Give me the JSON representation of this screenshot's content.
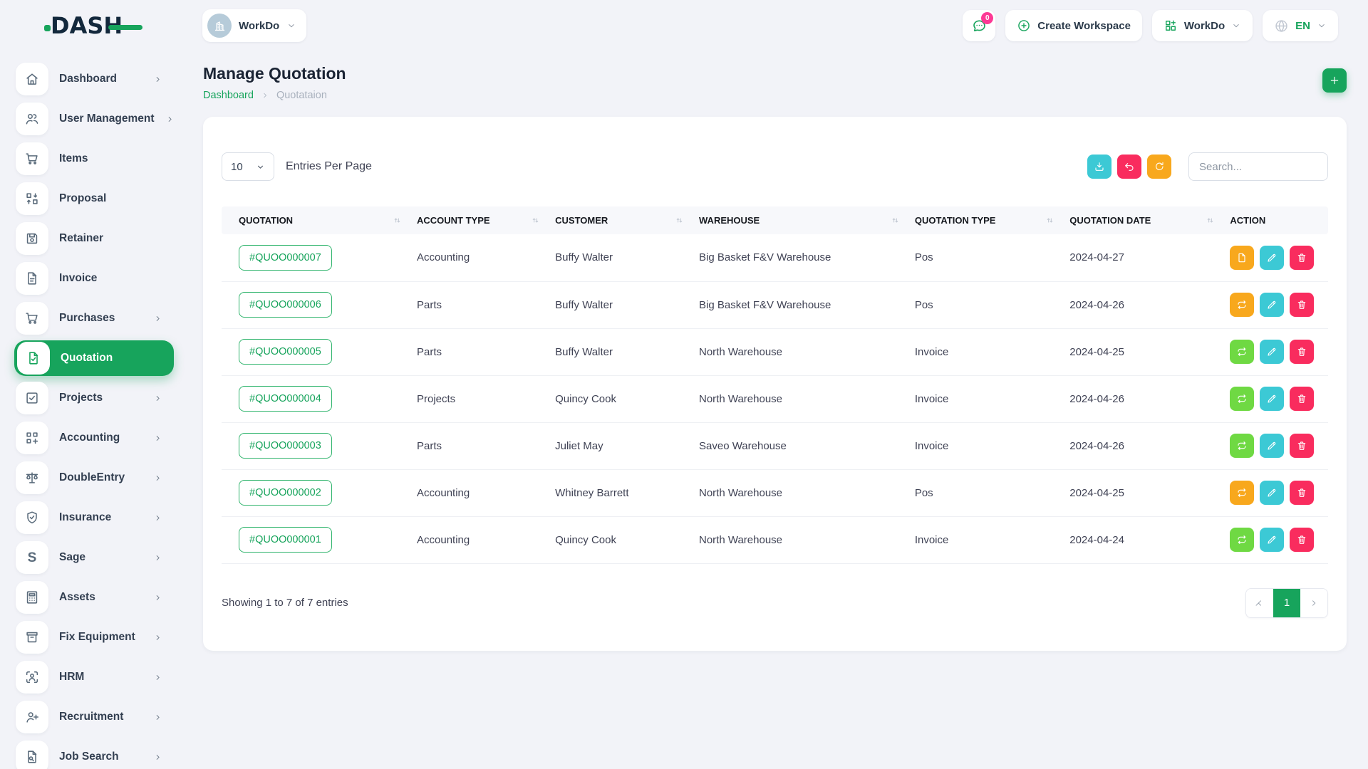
{
  "brand": {
    "logo_text": "DASH"
  },
  "topbar": {
    "workspace_selector": {
      "label": "WorkDo"
    },
    "messages_badge": "0",
    "create_workspace_label": "Create Workspace",
    "apps_dropdown_label": "WorkDo",
    "language_code": "EN"
  },
  "sidebar": {
    "items": [
      {
        "label": "Dashboard",
        "icon": "home",
        "chevron": true,
        "active": false
      },
      {
        "label": "User Management",
        "icon": "users",
        "chevron": true,
        "active": false
      },
      {
        "label": "Items",
        "icon": "cart",
        "chevron": false,
        "active": false
      },
      {
        "label": "Proposal",
        "icon": "swap-boxes",
        "chevron": false,
        "active": false
      },
      {
        "label": "Retainer",
        "icon": "floppy",
        "chevron": false,
        "active": false
      },
      {
        "label": "Invoice",
        "icon": "file-text",
        "chevron": false,
        "active": false
      },
      {
        "label": "Purchases",
        "icon": "cart",
        "chevron": true,
        "active": false
      },
      {
        "label": "Quotation",
        "icon": "file-check",
        "chevron": false,
        "active": true
      },
      {
        "label": "Projects",
        "icon": "square-check",
        "chevron": true,
        "active": false
      },
      {
        "label": "Accounting",
        "icon": "grid-plus",
        "chevron": true,
        "active": false
      },
      {
        "label": "DoubleEntry",
        "icon": "scale",
        "chevron": true,
        "active": false
      },
      {
        "label": "Insurance",
        "icon": "shield-check",
        "chevron": true,
        "active": false
      },
      {
        "label": "Sage",
        "icon": "sage-s",
        "chevron": true,
        "active": false
      },
      {
        "label": "Assets",
        "icon": "calculator",
        "chevron": true,
        "active": false
      },
      {
        "label": "Fix Equipment",
        "icon": "archive-box",
        "chevron": true,
        "active": false
      },
      {
        "label": "HRM",
        "icon": "user-focus",
        "chevron": true,
        "active": false
      },
      {
        "label": "Recruitment",
        "icon": "user-plus",
        "chevron": true,
        "active": false
      },
      {
        "label": "Job Search",
        "icon": "file-search",
        "chevron": true,
        "active": false
      }
    ]
  },
  "page": {
    "title": "Manage Quotation",
    "breadcrumb": {
      "home": "Dashboard",
      "current": "Quotataion"
    }
  },
  "toolbar": {
    "entries_select_value": "10",
    "entries_label": "Entries Per Page",
    "search_placeholder": "Search..."
  },
  "table": {
    "headers": [
      "QUOTATION",
      "ACCOUNT TYPE",
      "CUSTOMER",
      "WAREHOUSE",
      "QUOTATION TYPE",
      "QUOTATION DATE",
      "ACTION"
    ],
    "rows": [
      {
        "quotation": "#QUOO000007",
        "account_type": "Accounting",
        "customer": "Buffy Walter",
        "warehouse": "Big Basket F&V Warehouse",
        "quotation_type": "Pos",
        "date": "2024-04-27",
        "convert_icon": "file",
        "convert_color": "orange"
      },
      {
        "quotation": "#QUOO000006",
        "account_type": "Parts",
        "customer": "Buffy Walter",
        "warehouse": "Big Basket F&V Warehouse",
        "quotation_type": "Pos",
        "date": "2024-04-26",
        "convert_icon": "convert",
        "convert_color": "orange"
      },
      {
        "quotation": "#QUOO000005",
        "account_type": "Parts",
        "customer": "Buffy Walter",
        "warehouse": "North Warehouse",
        "quotation_type": "Invoice",
        "date": "2024-04-25",
        "convert_icon": "convert",
        "convert_color": "green"
      },
      {
        "quotation": "#QUOO000004",
        "account_type": "Projects",
        "customer": "Quincy Cook",
        "warehouse": "North Warehouse",
        "quotation_type": "Invoice",
        "date": "2024-04-26",
        "convert_icon": "convert",
        "convert_color": "green"
      },
      {
        "quotation": "#QUOO000003",
        "account_type": "Parts",
        "customer": "Juliet May",
        "warehouse": "Saveo Warehouse",
        "quotation_type": "Invoice",
        "date": "2024-04-26",
        "convert_icon": "convert",
        "convert_color": "green"
      },
      {
        "quotation": "#QUOO000002",
        "account_type": "Accounting",
        "customer": "Whitney Barrett",
        "warehouse": "North Warehouse",
        "quotation_type": "Pos",
        "date": "2024-04-25",
        "convert_icon": "convert",
        "convert_color": "orange"
      },
      {
        "quotation": "#QUOO000001",
        "account_type": "Accounting",
        "customer": "Quincy Cook",
        "warehouse": "North Warehouse",
        "quotation_type": "Invoice",
        "date": "2024-04-24",
        "convert_icon": "convert",
        "convert_color": "green"
      }
    ]
  },
  "footer": {
    "showing_text": "Showing 1 to 7 of 7 entries",
    "pagination": {
      "current_page": "1"
    }
  },
  "colors": {
    "primary_green": "#17a45c",
    "lime_green": "#6fd943",
    "orange": "#f8a81d",
    "cyan": "#3cc9d5",
    "pink": "#f92c5e",
    "badge_pink": "#fd3995",
    "page_bg": "#f2f3f8",
    "card_bg": "#ffffff",
    "text_dark": "#2b3a4a",
    "text_muted": "#9aa3b2",
    "icon_slate": "#5a6b7b"
  }
}
